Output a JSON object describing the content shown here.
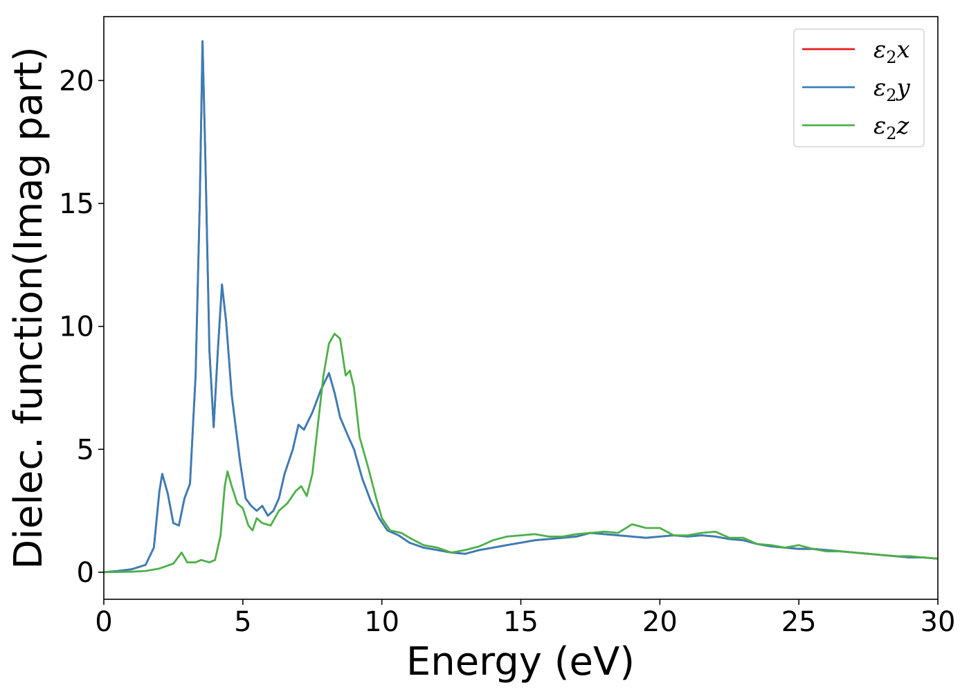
{
  "chart_data": {
    "type": "line",
    "title": "",
    "xlabel": "Energy (eV)",
    "ylabel": "Dielec. function(Imag part)",
    "xlim": [
      0,
      30
    ],
    "ylim": [
      -1.1,
      22.6
    ],
    "xticks": [
      0,
      5,
      10,
      15,
      20,
      25,
      30
    ],
    "yticks": [
      0,
      5,
      10,
      15,
      20
    ],
    "grid": false,
    "legend_position": "top-right",
    "legend": [
      {
        "symbol": "ε",
        "sub": "2",
        "axis": "x",
        "color": "#e41a1c"
      },
      {
        "symbol": "ε",
        "sub": "2",
        "axis": "y",
        "color": "#377eb8"
      },
      {
        "symbol": "ε",
        "sub": "2",
        "axis": "z",
        "color": "#4daf4a"
      }
    ],
    "series": [
      {
        "color": "#e41a1c",
        "points": [
          [
            0,
            0
          ],
          [
            0.5,
            0.05
          ],
          [
            1.0,
            0.12
          ],
          [
            1.5,
            0.3
          ],
          [
            1.8,
            1.0
          ],
          [
            2.0,
            3.3
          ],
          [
            2.1,
            4.0
          ],
          [
            2.3,
            3.2
          ],
          [
            2.5,
            2.0
          ],
          [
            2.7,
            1.9
          ],
          [
            2.9,
            3.0
          ],
          [
            3.1,
            3.6
          ],
          [
            3.3,
            8.0
          ],
          [
            3.45,
            15.0
          ],
          [
            3.55,
            21.6
          ],
          [
            3.65,
            17.0
          ],
          [
            3.8,
            9.0
          ],
          [
            3.95,
            5.9
          ],
          [
            4.1,
            9.0
          ],
          [
            4.25,
            11.7
          ],
          [
            4.4,
            10.2
          ],
          [
            4.6,
            7.2
          ],
          [
            4.9,
            4.5
          ],
          [
            5.1,
            3.0
          ],
          [
            5.3,
            2.7
          ],
          [
            5.5,
            2.5
          ],
          [
            5.7,
            2.7
          ],
          [
            5.9,
            2.3
          ],
          [
            6.1,
            2.5
          ],
          [
            6.3,
            3.0
          ],
          [
            6.5,
            4.0
          ],
          [
            6.8,
            5.0
          ],
          [
            7.0,
            6.0
          ],
          [
            7.2,
            5.8
          ],
          [
            7.5,
            6.5
          ],
          [
            7.8,
            7.4
          ],
          [
            8.1,
            8.1
          ],
          [
            8.3,
            7.3
          ],
          [
            8.5,
            6.3
          ],
          [
            8.8,
            5.5
          ],
          [
            9.0,
            5.0
          ],
          [
            9.3,
            3.8
          ],
          [
            9.6,
            2.9
          ],
          [
            9.9,
            2.2
          ],
          [
            10.2,
            1.7
          ],
          [
            10.6,
            1.5
          ],
          [
            11.0,
            1.2
          ],
          [
            11.5,
            1.0
          ],
          [
            12.0,
            0.9
          ],
          [
            12.5,
            0.8
          ],
          [
            13.0,
            0.75
          ],
          [
            13.5,
            0.9
          ],
          [
            14.0,
            1.0
          ],
          [
            14.5,
            1.1
          ],
          [
            15.0,
            1.2
          ],
          [
            15.5,
            1.3
          ],
          [
            16.0,
            1.35
          ],
          [
            16.5,
            1.4
          ],
          [
            17.0,
            1.45
          ],
          [
            17.5,
            1.6
          ],
          [
            18.0,
            1.55
          ],
          [
            18.5,
            1.5
          ],
          [
            19.0,
            1.45
          ],
          [
            19.5,
            1.4
          ],
          [
            20.0,
            1.45
          ],
          [
            20.5,
            1.5
          ],
          [
            21.0,
            1.45
          ],
          [
            21.5,
            1.5
          ],
          [
            22.0,
            1.45
          ],
          [
            22.5,
            1.35
          ],
          [
            23.0,
            1.3
          ],
          [
            23.5,
            1.15
          ],
          [
            24.0,
            1.05
          ],
          [
            24.5,
            1.0
          ],
          [
            25.0,
            0.95
          ],
          [
            25.5,
            0.95
          ],
          [
            26.0,
            0.9
          ],
          [
            26.5,
            0.85
          ],
          [
            27.0,
            0.8
          ],
          [
            27.5,
            0.75
          ],
          [
            28.0,
            0.7
          ],
          [
            28.5,
            0.65
          ],
          [
            29.0,
            0.6
          ],
          [
            29.5,
            0.6
          ],
          [
            30.0,
            0.55
          ]
        ]
      },
      {
        "color": "#377eb8",
        "points": [
          [
            0,
            0
          ],
          [
            0.5,
            0.05
          ],
          [
            1.0,
            0.12
          ],
          [
            1.5,
            0.3
          ],
          [
            1.8,
            1.0
          ],
          [
            2.0,
            3.3
          ],
          [
            2.1,
            4.0
          ],
          [
            2.3,
            3.2
          ],
          [
            2.5,
            2.0
          ],
          [
            2.7,
            1.9
          ],
          [
            2.9,
            3.0
          ],
          [
            3.1,
            3.6
          ],
          [
            3.3,
            8.0
          ],
          [
            3.45,
            15.0
          ],
          [
            3.55,
            21.6
          ],
          [
            3.65,
            17.0
          ],
          [
            3.8,
            9.0
          ],
          [
            3.95,
            5.9
          ],
          [
            4.1,
            9.0
          ],
          [
            4.25,
            11.7
          ],
          [
            4.4,
            10.2
          ],
          [
            4.6,
            7.2
          ],
          [
            4.9,
            4.5
          ],
          [
            5.1,
            3.0
          ],
          [
            5.3,
            2.7
          ],
          [
            5.5,
            2.5
          ],
          [
            5.7,
            2.7
          ],
          [
            5.9,
            2.3
          ],
          [
            6.1,
            2.5
          ],
          [
            6.3,
            3.0
          ],
          [
            6.5,
            4.0
          ],
          [
            6.8,
            5.0
          ],
          [
            7.0,
            6.0
          ],
          [
            7.2,
            5.8
          ],
          [
            7.5,
            6.5
          ],
          [
            7.8,
            7.4
          ],
          [
            8.1,
            8.1
          ],
          [
            8.3,
            7.3
          ],
          [
            8.5,
            6.3
          ],
          [
            8.8,
            5.5
          ],
          [
            9.0,
            5.0
          ],
          [
            9.3,
            3.8
          ],
          [
            9.6,
            2.9
          ],
          [
            9.9,
            2.2
          ],
          [
            10.2,
            1.7
          ],
          [
            10.6,
            1.5
          ],
          [
            11.0,
            1.2
          ],
          [
            11.5,
            1.0
          ],
          [
            12.0,
            0.9
          ],
          [
            12.5,
            0.8
          ],
          [
            13.0,
            0.75
          ],
          [
            13.5,
            0.9
          ],
          [
            14.0,
            1.0
          ],
          [
            14.5,
            1.1
          ],
          [
            15.0,
            1.2
          ],
          [
            15.5,
            1.3
          ],
          [
            16.0,
            1.35
          ],
          [
            16.5,
            1.4
          ],
          [
            17.0,
            1.45
          ],
          [
            17.5,
            1.6
          ],
          [
            18.0,
            1.55
          ],
          [
            18.5,
            1.5
          ],
          [
            19.0,
            1.45
          ],
          [
            19.5,
            1.4
          ],
          [
            20.0,
            1.45
          ],
          [
            20.5,
            1.5
          ],
          [
            21.0,
            1.45
          ],
          [
            21.5,
            1.5
          ],
          [
            22.0,
            1.45
          ],
          [
            22.5,
            1.35
          ],
          [
            23.0,
            1.3
          ],
          [
            23.5,
            1.15
          ],
          [
            24.0,
            1.05
          ],
          [
            24.5,
            1.0
          ],
          [
            25.0,
            0.95
          ],
          [
            25.5,
            0.95
          ],
          [
            26.0,
            0.9
          ],
          [
            26.5,
            0.85
          ],
          [
            27.0,
            0.8
          ],
          [
            27.5,
            0.75
          ],
          [
            28.0,
            0.7
          ],
          [
            28.5,
            0.65
          ],
          [
            29.0,
            0.6
          ],
          [
            29.5,
            0.6
          ],
          [
            30.0,
            0.55
          ]
        ]
      },
      {
        "color": "#4daf4a",
        "points": [
          [
            0,
            0
          ],
          [
            1.0,
            0.02
          ],
          [
            1.5,
            0.05
          ],
          [
            2.0,
            0.15
          ],
          [
            2.5,
            0.35
          ],
          [
            2.8,
            0.8
          ],
          [
            3.0,
            0.4
          ],
          [
            3.3,
            0.4
          ],
          [
            3.5,
            0.5
          ],
          [
            3.8,
            0.4
          ],
          [
            4.0,
            0.5
          ],
          [
            4.2,
            1.5
          ],
          [
            4.35,
            3.5
          ],
          [
            4.45,
            4.1
          ],
          [
            4.6,
            3.5
          ],
          [
            4.8,
            2.8
          ],
          [
            5.0,
            2.6
          ],
          [
            5.2,
            1.9
          ],
          [
            5.35,
            1.7
          ],
          [
            5.5,
            2.2
          ],
          [
            5.7,
            2.0
          ],
          [
            6.0,
            1.9
          ],
          [
            6.3,
            2.5
          ],
          [
            6.6,
            2.8
          ],
          [
            6.9,
            3.3
          ],
          [
            7.1,
            3.5
          ],
          [
            7.3,
            3.1
          ],
          [
            7.5,
            4.0
          ],
          [
            7.7,
            6.0
          ],
          [
            7.9,
            8.0
          ],
          [
            8.1,
            9.3
          ],
          [
            8.3,
            9.7
          ],
          [
            8.5,
            9.5
          ],
          [
            8.7,
            8.0
          ],
          [
            8.85,
            8.2
          ],
          [
            9.0,
            7.5
          ],
          [
            9.2,
            5.5
          ],
          [
            9.5,
            4.3
          ],
          [
            9.8,
            3.0
          ],
          [
            10.0,
            2.2
          ],
          [
            10.3,
            1.7
          ],
          [
            10.7,
            1.6
          ],
          [
            11.0,
            1.4
          ],
          [
            11.5,
            1.1
          ],
          [
            12.0,
            1.0
          ],
          [
            12.5,
            0.8
          ],
          [
            13.0,
            0.9
          ],
          [
            13.5,
            1.05
          ],
          [
            14.0,
            1.3
          ],
          [
            14.5,
            1.45
          ],
          [
            15.0,
            1.5
          ],
          [
            15.5,
            1.55
          ],
          [
            16.0,
            1.45
          ],
          [
            16.5,
            1.45
          ],
          [
            17.0,
            1.55
          ],
          [
            17.5,
            1.6
          ],
          [
            18.0,
            1.65
          ],
          [
            18.5,
            1.6
          ],
          [
            19.0,
            1.95
          ],
          [
            19.5,
            1.8
          ],
          [
            20.0,
            1.8
          ],
          [
            20.5,
            1.5
          ],
          [
            21.0,
            1.5
          ],
          [
            21.5,
            1.6
          ],
          [
            22.0,
            1.65
          ],
          [
            22.5,
            1.4
          ],
          [
            23.0,
            1.4
          ],
          [
            23.5,
            1.15
          ],
          [
            24.0,
            1.1
          ],
          [
            24.5,
            1.0
          ],
          [
            25.0,
            1.1
          ],
          [
            25.5,
            0.95
          ],
          [
            26.0,
            0.85
          ],
          [
            26.5,
            0.85
          ],
          [
            27.0,
            0.8
          ],
          [
            27.5,
            0.75
          ],
          [
            28.0,
            0.7
          ],
          [
            28.5,
            0.65
          ],
          [
            29.0,
            0.65
          ],
          [
            29.5,
            0.6
          ],
          [
            30.0,
            0.55
          ]
        ]
      }
    ]
  }
}
